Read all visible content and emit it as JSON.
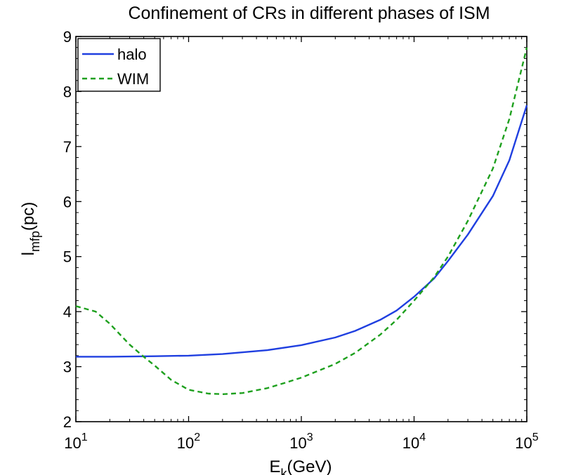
{
  "chart_data": {
    "type": "line",
    "title": "Confinement of CRs in different phases of ISM",
    "xlabel": {
      "base": "E",
      "sub": "k",
      "rest": "(GeV)"
    },
    "ylabel": {
      "base": "l",
      "sub": "mfp",
      "rest": "(pc)"
    },
    "xscale": "log",
    "xlim_exponent": [
      1,
      5
    ],
    "x_ticks": [
      {
        "base": "10",
        "exp": "1",
        "value": 10
      },
      {
        "base": "10",
        "exp": "2",
        "value": 100
      },
      {
        "base": "10",
        "exp": "3",
        "value": 1000
      },
      {
        "base": "10",
        "exp": "4",
        "value": 10000
      },
      {
        "base": "10",
        "exp": "5",
        "value": 100000
      }
    ],
    "ylim": [
      2,
      9
    ],
    "y_ticks": [
      "2",
      "3",
      "4",
      "5",
      "6",
      "7",
      "8",
      "9"
    ],
    "legend": {
      "placement": "top-left",
      "entries": [
        "halo",
        "WIM"
      ]
    },
    "series": [
      {
        "name": "halo",
        "color": "#1f3fe0",
        "dash": "solid",
        "x": [
          10,
          20,
          50,
          100,
          200,
          500,
          1000,
          2000,
          3000,
          5000,
          7000,
          10000,
          15000,
          20000,
          30000,
          50000,
          70000,
          100000
        ],
        "y": [
          3.18,
          3.18,
          3.19,
          3.2,
          3.23,
          3.3,
          3.39,
          3.53,
          3.65,
          3.85,
          4.02,
          4.27,
          4.6,
          4.92,
          5.4,
          6.1,
          6.75,
          7.75
        ]
      },
      {
        "name": "WIM",
        "color": "#1ea01e",
        "dash": "dashed",
        "x": [
          10,
          15,
          20,
          30,
          40,
          50,
          70,
          100,
          150,
          200,
          300,
          500,
          700,
          1000,
          2000,
          3000,
          5000,
          7000,
          10000,
          15000,
          20000,
          30000,
          50000,
          70000,
          100000
        ],
        "y": [
          4.1,
          4.0,
          3.78,
          3.4,
          3.18,
          3.02,
          2.76,
          2.58,
          2.51,
          2.5,
          2.52,
          2.61,
          2.7,
          2.8,
          3.05,
          3.25,
          3.58,
          3.85,
          4.2,
          4.62,
          5.0,
          5.65,
          6.6,
          7.5,
          8.8
        ]
      }
    ]
  }
}
